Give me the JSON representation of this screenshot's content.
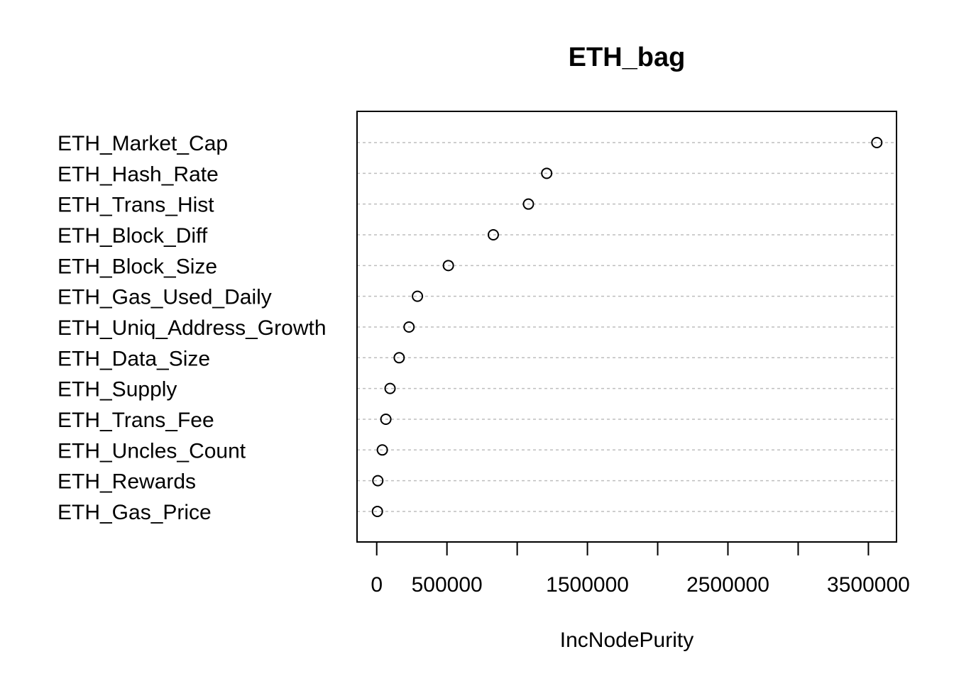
{
  "chart_data": {
    "type": "scatter",
    "subtype": "dotchart",
    "title": "ETH_bag",
    "xlabel": "IncNodePurity",
    "ylabel": "",
    "xlim": [
      -140000,
      3700000
    ],
    "x_ticks": [
      0,
      500000,
      1000000,
      1500000,
      2000000,
      2500000,
      3000000,
      3500000
    ],
    "x_tick_labels": [
      {
        "value": 0,
        "label": "0"
      },
      {
        "value": 500000,
        "label": "500000"
      },
      {
        "value": 1500000,
        "label": "1500000"
      },
      {
        "value": 2500000,
        "label": "2500000"
      },
      {
        "value": 3500000,
        "label": "3500000"
      }
    ],
    "grid": "horizontal-dotted",
    "legend": "none",
    "categories": [
      "ETH_Market_Cap",
      "ETH_Hash_Rate",
      "ETH_Trans_Hist",
      "ETH_Block_Diff",
      "ETH_Block_Size",
      "ETH_Gas_Used_Daily",
      "ETH_Uniq_Address_Growth",
      "ETH_Data_Size",
      "ETH_Supply",
      "ETH_Trans_Fee",
      "ETH_Uncles_Count",
      "ETH_Rewards",
      "ETH_Gas_Price"
    ],
    "values": [
      3560000,
      1210000,
      1080000,
      830000,
      510000,
      290000,
      230000,
      160000,
      95000,
      65000,
      40000,
      8000,
      5000
    ],
    "colors": {
      "points": "#000000",
      "grid": "#bebebe",
      "axis": "#000000"
    }
  }
}
